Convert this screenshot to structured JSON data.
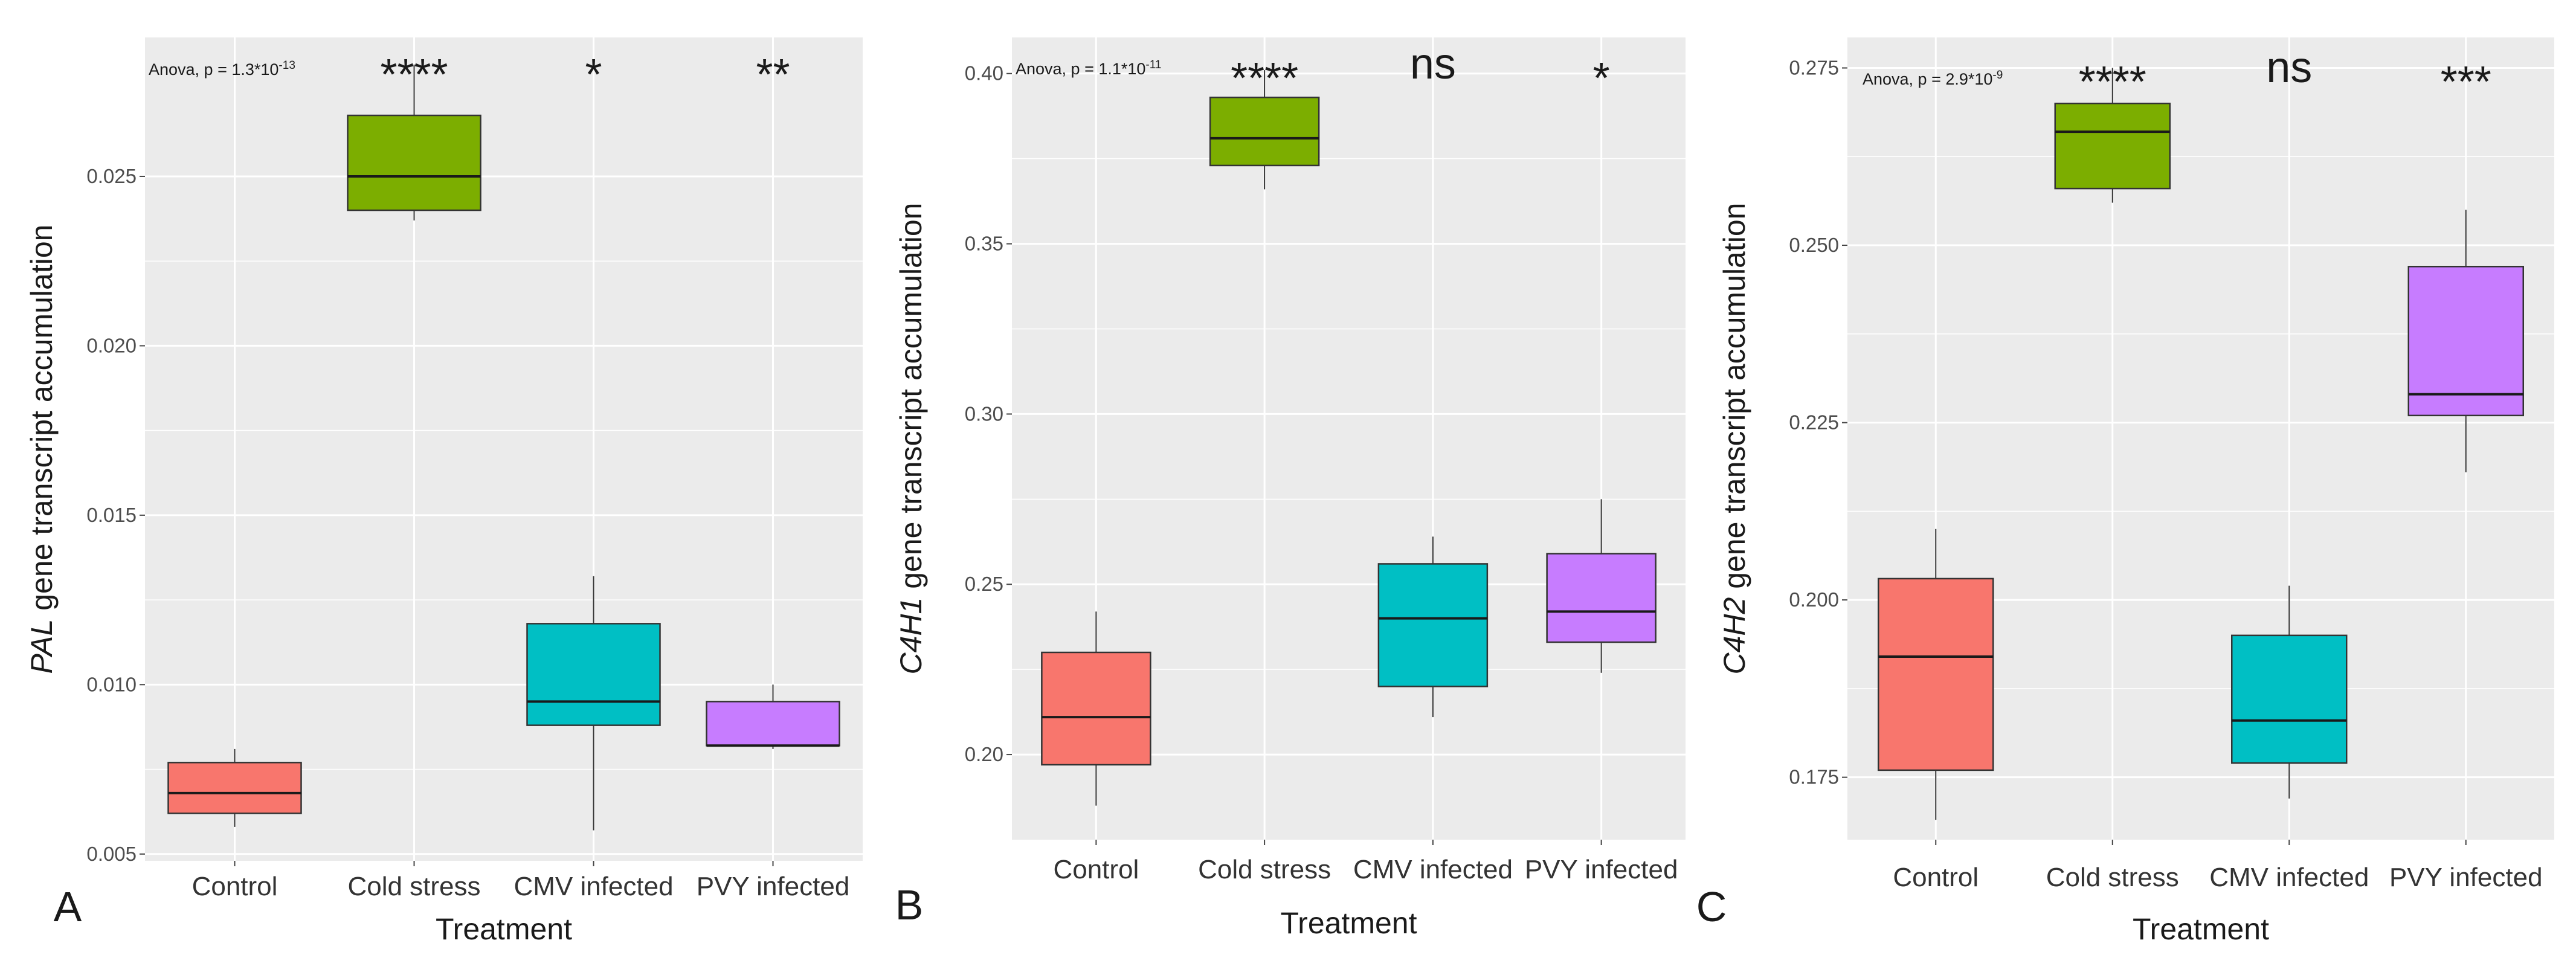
{
  "chart_data": [
    {
      "type": "box",
      "panel": "A",
      "gene": "PAL",
      "ylabel_rest": " gene transcript accumulation",
      "xlabel": "Treatment",
      "annotation": "Anova, p = 1.3*10",
      "annotation_exp": "-13",
      "ylim": [
        0.0048,
        0.0291
      ],
      "yticks": [
        0.005,
        0.01,
        0.015,
        0.02,
        0.025
      ],
      "ytick_labels": [
        "0.005",
        "0.010",
        "0.015",
        "0.020",
        "0.025"
      ],
      "categories": [
        "Control",
        "Cold stress",
        "CMV infected",
        "PVY infected"
      ],
      "colors": [
        "#F8766D",
        "#7CAE00",
        "#00BFC4",
        "#C77CFF"
      ],
      "significance": [
        "",
        "****",
        "*",
        "**"
      ],
      "boxes": [
        {
          "min": 0.0058,
          "q1": 0.0062,
          "median": 0.0068,
          "q3": 0.0077,
          "max": 0.0081
        },
        {
          "min": 0.0237,
          "q1": 0.024,
          "median": 0.025,
          "q3": 0.0268,
          "max": 0.0283
        },
        {
          "min": 0.0057,
          "q1": 0.0088,
          "median": 0.0095,
          "q3": 0.0118,
          "max": 0.0132
        },
        {
          "min": 0.0081,
          "q1": 0.0082,
          "median": 0.0082,
          "q3": 0.0095,
          "max": 0.01
        }
      ]
    },
    {
      "type": "box",
      "panel": "B",
      "gene": "C4H1",
      "ylabel_rest": " gene transcript accumulation",
      "xlabel": "Treatment",
      "annotation": "Anova, p = 1.1*10",
      "annotation_exp": "-11",
      "ylim": [
        0.175,
        0.4106
      ],
      "yticks": [
        0.2,
        0.25,
        0.3,
        0.35,
        0.4
      ],
      "ytick_labels": [
        "0.20",
        "0.25",
        "0.30",
        "0.35",
        "0.40"
      ],
      "categories": [
        "Control",
        "Cold stress",
        "CMV infected",
        "PVY infected"
      ],
      "colors": [
        "#F8766D",
        "#7CAE00",
        "#00BFC4",
        "#C77CFF"
      ],
      "significance": [
        "",
        "****",
        "ns",
        "*"
      ],
      "boxes": [
        {
          "min": 0.185,
          "q1": 0.197,
          "median": 0.211,
          "q3": 0.23,
          "max": 0.242
        },
        {
          "min": 0.366,
          "q1": 0.373,
          "median": 0.381,
          "q3": 0.393,
          "max": 0.401
        },
        {
          "min": 0.211,
          "q1": 0.22,
          "median": 0.24,
          "q3": 0.256,
          "max": 0.264
        },
        {
          "min": 0.224,
          "q1": 0.233,
          "median": 0.242,
          "q3": 0.259,
          "max": 0.275
        }
      ]
    },
    {
      "type": "box",
      "panel": "C",
      "gene": "C4H2",
      "ylabel_rest": " gene transcript accumulation",
      "xlabel": "Treatment",
      "annotation": "Anova, p = 2.9*10",
      "annotation_exp": "-9",
      "ylim": [
        0.1662,
        0.2793
      ],
      "yticks": [
        0.175,
        0.2,
        0.225,
        0.25,
        0.275
      ],
      "ytick_labels": [
        "0.175",
        "0.200",
        "0.225",
        "0.250",
        "0.275"
      ],
      "categories": [
        "Control",
        "Cold stress",
        "CMV infected",
        "PVY infected"
      ],
      "colors": [
        "#F8766D",
        "#7CAE00",
        "#00BFC4",
        "#C77CFF"
      ],
      "significance": [
        "",
        "****",
        "ns",
        "***"
      ],
      "boxes": [
        {
          "min": 0.169,
          "q1": 0.176,
          "median": 0.192,
          "q3": 0.203,
          "max": 0.21
        },
        {
          "min": 0.256,
          "q1": 0.258,
          "median": 0.266,
          "q3": 0.27,
          "max": 0.275
        },
        {
          "min": 0.172,
          "q1": 0.177,
          "median": 0.183,
          "q3": 0.195,
          "max": 0.202
        },
        {
          "min": 0.218,
          "q1": 0.226,
          "median": 0.229,
          "q3": 0.247,
          "max": 0.255
        }
      ]
    }
  ]
}
